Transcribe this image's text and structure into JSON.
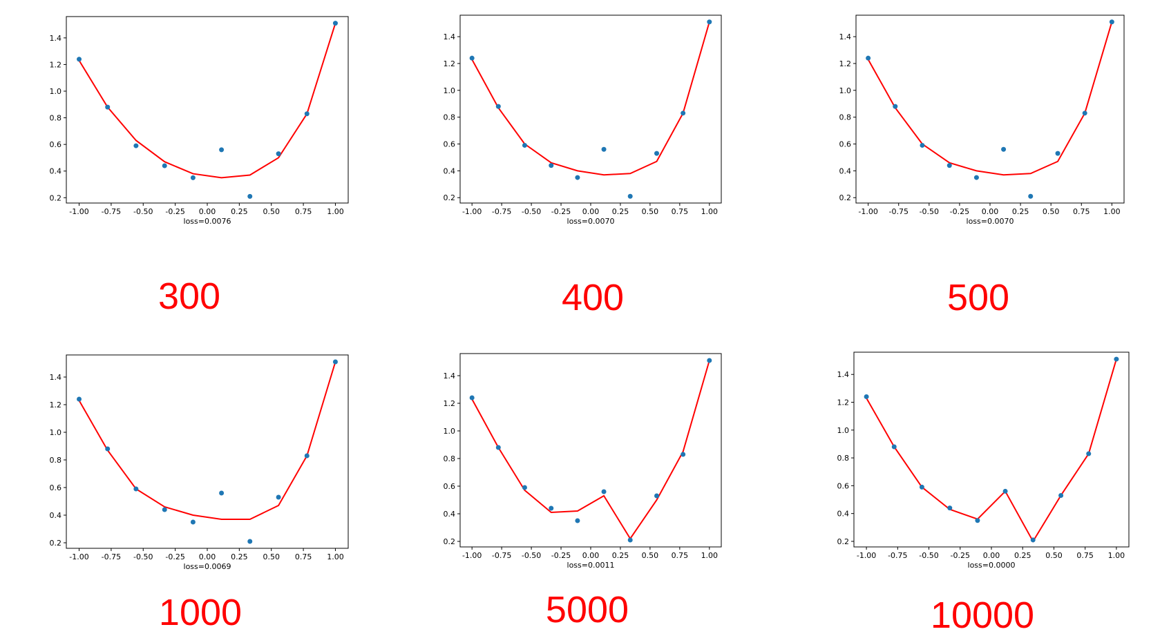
{
  "colors": {
    "points": "#1f77b4",
    "fit_line": "#ff0000",
    "epoch_label": "#ff0000",
    "axes": "#000000"
  },
  "chart_data": [
    {
      "type": "scatter",
      "title": "",
      "xlabel": "loss=0.0076",
      "epoch_label": "300",
      "xlim": [
        -1.1,
        1.1
      ],
      "ylim": [
        0.16,
        1.56
      ],
      "xticks": [
        "-1.00",
        "-0.75",
        "-0.50",
        "-0.25",
        "0.00",
        "0.25",
        "0.50",
        "0.75",
        "1.00"
      ],
      "yticks": [
        "0.2",
        "0.4",
        "0.6",
        "0.8",
        "1.0",
        "1.2",
        "1.4"
      ],
      "grid": false,
      "series": [
        {
          "type": "scatter",
          "x": [
            -1.0,
            -0.778,
            -0.556,
            -0.333,
            -0.111,
            0.111,
            0.333,
            0.556,
            0.778,
            1.0
          ],
          "y": [
            1.24,
            0.88,
            0.59,
            0.44,
            0.35,
            0.56,
            0.21,
            0.53,
            0.83,
            1.51
          ]
        },
        {
          "type": "line",
          "x": [
            -1.0,
            -0.778,
            -0.556,
            -0.333,
            -0.111,
            0.111,
            0.333,
            0.556,
            0.778,
            1.0
          ],
          "y": [
            1.23,
            0.88,
            0.63,
            0.47,
            0.38,
            0.35,
            0.37,
            0.5,
            0.83,
            1.51
          ]
        }
      ]
    },
    {
      "type": "scatter",
      "title": "",
      "xlabel": "loss=0.0070",
      "epoch_label": "400",
      "xlim": [
        -1.1,
        1.1
      ],
      "ylim": [
        0.16,
        1.56
      ],
      "xticks": [
        "-1.00",
        "-0.75",
        "-0.50",
        "-0.25",
        "0.00",
        "0.25",
        "0.50",
        "0.75",
        "1.00"
      ],
      "yticks": [
        "0.2",
        "0.4",
        "0.6",
        "0.8",
        "1.0",
        "1.2",
        "1.4"
      ],
      "grid": false,
      "series": [
        {
          "type": "scatter",
          "x": [
            -1.0,
            -0.778,
            -0.556,
            -0.333,
            -0.111,
            0.111,
            0.333,
            0.556,
            0.778,
            1.0
          ],
          "y": [
            1.24,
            0.88,
            0.59,
            0.44,
            0.35,
            0.56,
            0.21,
            0.53,
            0.83,
            1.51
          ]
        },
        {
          "type": "line",
          "x": [
            -1.0,
            -0.778,
            -0.556,
            -0.333,
            -0.111,
            0.111,
            0.333,
            0.556,
            0.778,
            1.0
          ],
          "y": [
            1.23,
            0.87,
            0.6,
            0.46,
            0.4,
            0.37,
            0.38,
            0.47,
            0.83,
            1.51
          ]
        }
      ]
    },
    {
      "type": "scatter",
      "title": "",
      "xlabel": "loss=0.0070",
      "epoch_label": "500",
      "xlim": [
        -1.1,
        1.1
      ],
      "ylim": [
        0.16,
        1.56
      ],
      "xticks": [
        "-1.00",
        "-0.75",
        "-0.50",
        "-0.25",
        "0.00",
        "0.25",
        "0.50",
        "0.75",
        "1.00"
      ],
      "yticks": [
        "0.2",
        "0.4",
        "0.6",
        "0.8",
        "1.0",
        "1.2",
        "1.4"
      ],
      "grid": false,
      "series": [
        {
          "type": "scatter",
          "x": [
            -1.0,
            -0.778,
            -0.556,
            -0.333,
            -0.111,
            0.111,
            0.333,
            0.556,
            0.778,
            1.0
          ],
          "y": [
            1.24,
            0.88,
            0.59,
            0.44,
            0.35,
            0.56,
            0.21,
            0.53,
            0.83,
            1.51
          ]
        },
        {
          "type": "line",
          "x": [
            -1.0,
            -0.778,
            -0.556,
            -0.333,
            -0.111,
            0.111,
            0.333,
            0.556,
            0.778,
            1.0
          ],
          "y": [
            1.23,
            0.87,
            0.6,
            0.46,
            0.4,
            0.37,
            0.38,
            0.47,
            0.83,
            1.51
          ]
        }
      ]
    },
    {
      "type": "scatter",
      "title": "",
      "xlabel": "loss=0.0069",
      "epoch_label": "1000",
      "xlim": [
        -1.1,
        1.1
      ],
      "ylim": [
        0.16,
        1.56
      ],
      "xticks": [
        "-1.00",
        "-0.75",
        "-0.50",
        "-0.25",
        "0.00",
        "0.25",
        "0.50",
        "0.75",
        "1.00"
      ],
      "yticks": [
        "0.2",
        "0.4",
        "0.6",
        "0.8",
        "1.0",
        "1.2",
        "1.4"
      ],
      "grid": false,
      "series": [
        {
          "type": "scatter",
          "x": [
            -1.0,
            -0.778,
            -0.556,
            -0.333,
            -0.111,
            0.111,
            0.333,
            0.556,
            0.778,
            1.0
          ],
          "y": [
            1.24,
            0.88,
            0.59,
            0.44,
            0.35,
            0.56,
            0.21,
            0.53,
            0.83,
            1.51
          ]
        },
        {
          "type": "line",
          "x": [
            -1.0,
            -0.778,
            -0.556,
            -0.333,
            -0.111,
            0.111,
            0.333,
            0.556,
            0.778,
            1.0
          ],
          "y": [
            1.23,
            0.87,
            0.59,
            0.46,
            0.4,
            0.37,
            0.37,
            0.47,
            0.83,
            1.51
          ]
        }
      ]
    },
    {
      "type": "scatter",
      "title": "",
      "xlabel": "loss=0.0011",
      "epoch_label": "5000",
      "xlim": [
        -1.1,
        1.1
      ],
      "ylim": [
        0.16,
        1.56
      ],
      "xticks": [
        "-1.00",
        "-0.75",
        "-0.50",
        "-0.25",
        "0.00",
        "0.25",
        "0.50",
        "0.75",
        "1.00"
      ],
      "yticks": [
        "0.2",
        "0.4",
        "0.6",
        "0.8",
        "1.0",
        "1.2",
        "1.4"
      ],
      "grid": false,
      "series": [
        {
          "type": "scatter",
          "x": [
            -1.0,
            -0.778,
            -0.556,
            -0.333,
            -0.111,
            0.111,
            0.333,
            0.556,
            0.778,
            1.0
          ],
          "y": [
            1.24,
            0.88,
            0.59,
            0.44,
            0.35,
            0.56,
            0.21,
            0.53,
            0.83,
            1.51
          ]
        },
        {
          "type": "line",
          "x": [
            -1.0,
            -0.778,
            -0.556,
            -0.333,
            -0.111,
            0.111,
            0.333,
            0.556,
            0.778,
            1.0
          ],
          "y": [
            1.23,
            0.88,
            0.57,
            0.41,
            0.42,
            0.53,
            0.22,
            0.5,
            0.85,
            1.51
          ]
        }
      ]
    },
    {
      "type": "scatter",
      "title": "",
      "xlabel": "loss=0.0000",
      "epoch_label": "10000",
      "xlim": [
        -1.1,
        1.1
      ],
      "ylim": [
        0.16,
        1.56
      ],
      "xticks": [
        "-1.00",
        "-0.75",
        "-0.50",
        "-0.25",
        "0.00",
        "0.25",
        "0.50",
        "0.75",
        "1.00"
      ],
      "yticks": [
        "0.2",
        "0.4",
        "0.6",
        "0.8",
        "1.0",
        "1.2",
        "1.4"
      ],
      "grid": false,
      "series": [
        {
          "type": "scatter",
          "x": [
            -1.0,
            -0.778,
            -0.556,
            -0.333,
            -0.111,
            0.111,
            0.333,
            0.556,
            0.778,
            1.0
          ],
          "y": [
            1.24,
            0.88,
            0.59,
            0.44,
            0.35,
            0.56,
            0.21,
            0.53,
            0.83,
            1.51
          ]
        },
        {
          "type": "line",
          "x": [
            -1.0,
            -0.778,
            -0.556,
            -0.333,
            -0.111,
            0.111,
            0.333,
            0.556,
            0.778,
            1.0
          ],
          "y": [
            1.23,
            0.88,
            0.59,
            0.43,
            0.36,
            0.56,
            0.2,
            0.53,
            0.83,
            1.51
          ]
        }
      ]
    }
  ]
}
